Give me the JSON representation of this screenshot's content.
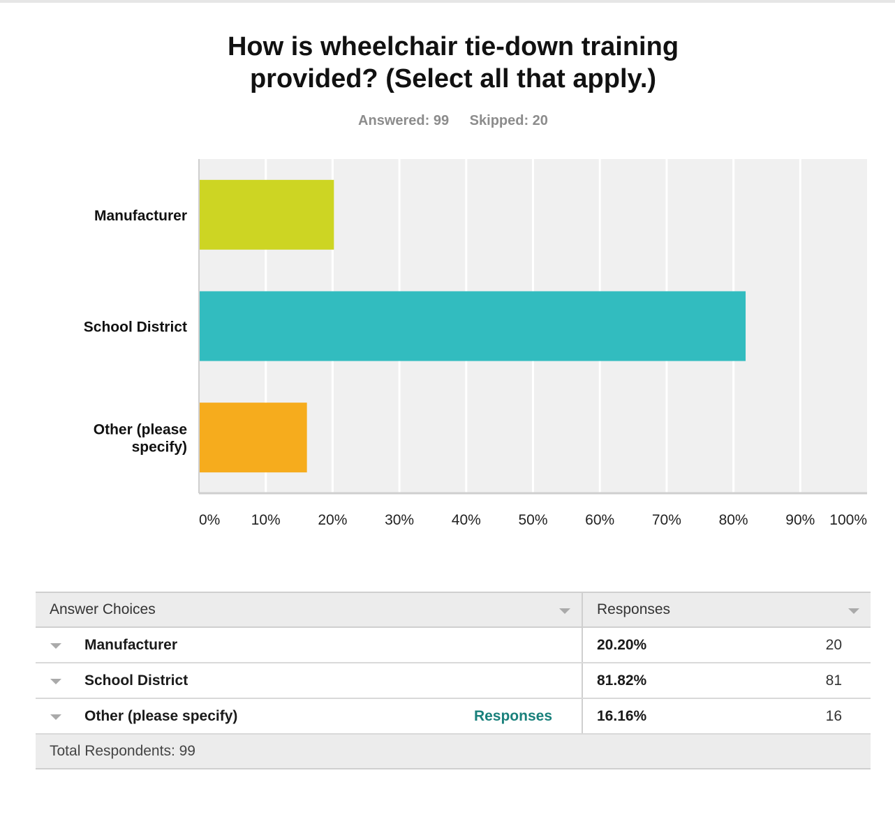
{
  "title_lines": [
    "How is wheelchair tie-down training",
    "provided? (Select all that apply.)"
  ],
  "stats": {
    "answered": "Answered: 99",
    "skipped": "Skipped: 20"
  },
  "chart_data": {
    "type": "bar",
    "orientation": "horizontal",
    "title": "How is wheelchair tie-down training provided? (Select all that apply.)",
    "categories": [
      "Manufacturer",
      "School District",
      "Other (please specify)"
    ],
    "category_lines": [
      [
        "Manufacturer"
      ],
      [
        "School District"
      ],
      [
        "Other (please",
        "specify)"
      ]
    ],
    "values": [
      20.2,
      81.82,
      16.16
    ],
    "colors": [
      "#cdd523",
      "#32bcbf",
      "#f6ac1d"
    ],
    "xlim": [
      0,
      100
    ],
    "xticks": [
      "0%",
      "10%",
      "20%",
      "30%",
      "40%",
      "50%",
      "60%",
      "70%",
      "80%",
      "90%",
      "100%"
    ],
    "grid": true,
    "background": "#f0f0f0"
  },
  "table": {
    "headers": {
      "choices": "Answer Choices",
      "responses": "Responses"
    },
    "rows": [
      {
        "choice": "Manufacturer",
        "percent": "20.20%",
        "count": "20",
        "link": ""
      },
      {
        "choice": "School District",
        "percent": "81.82%",
        "count": "81",
        "link": ""
      },
      {
        "choice": "Other (please specify)",
        "percent": "16.16%",
        "count": "16",
        "link": "Responses"
      }
    ],
    "total": "Total Respondents: 99"
  },
  "accent_color": "#19807b"
}
